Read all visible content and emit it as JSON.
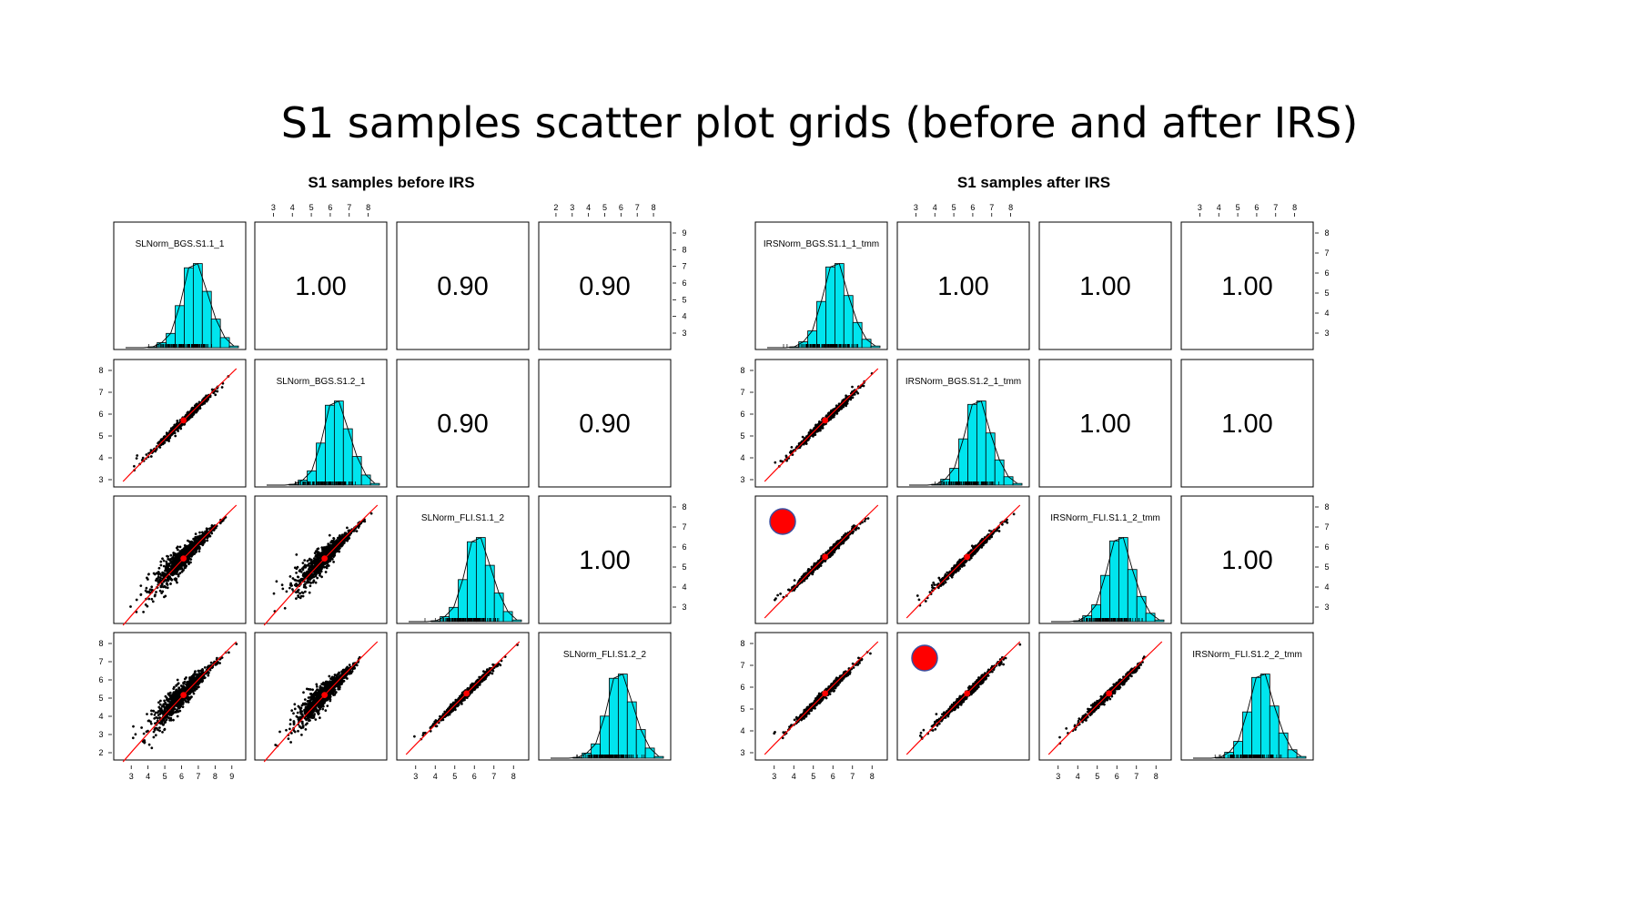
{
  "page": {
    "title": "S1 samples scatter plot grids (before and after IRS)"
  },
  "chart_data": [
    {
      "type": "scatter-matrix",
      "title": "S1 samples before IRS",
      "variables": [
        "SLNorm_BGS.S1.1_1",
        "SLNorm_BGS.S1.2_1",
        "SLNorm_FLI.S1.1_2",
        "SLNorm_FLI.S1.2_2"
      ],
      "correlations": [
        {
          "row": 1,
          "col": 2,
          "value": "1.00"
        },
        {
          "row": 1,
          "col": 3,
          "value": "0.90"
        },
        {
          "row": 1,
          "col": 4,
          "value": "0.90"
        },
        {
          "row": 2,
          "col": 3,
          "value": "0.90"
        },
        {
          "row": 2,
          "col": 4,
          "value": "0.90"
        },
        {
          "row": 3,
          "col": 4,
          "value": "1.00"
        }
      ],
      "scatter_spread": [
        {
          "row": 2,
          "col": 1,
          "spread": "tight"
        },
        {
          "row": 3,
          "col": 1,
          "spread": "wide"
        },
        {
          "row": 3,
          "col": 2,
          "spread": "wide"
        },
        {
          "row": 4,
          "col": 1,
          "spread": "wide"
        },
        {
          "row": 4,
          "col": 2,
          "spread": "wide"
        },
        {
          "row": 4,
          "col": 3,
          "spread": "tight"
        }
      ],
      "histogram": {
        "bar_color": "#00E5EE",
        "bins": [
          2.5,
          3,
          3.5,
          4,
          4.5,
          5,
          5.5,
          6,
          6.5,
          7,
          7.5,
          8,
          8.5,
          9
        ],
        "relative_heights": [
          0,
          0,
          0,
          0.01,
          0.06,
          0.17,
          0.5,
          0.95,
          1.0,
          0.67,
          0.34,
          0.12,
          0.02
        ]
      },
      "top_axis_ticks": [
        {
          "col": 2,
          "ticks": [
            "3",
            "4",
            "5",
            "6",
            "7",
            "8"
          ]
        },
        {
          "col": 4,
          "ticks": [
            "2",
            "3",
            "4",
            "5",
            "6",
            "7",
            "8"
          ]
        }
      ],
      "right_axis_ticks": [
        {
          "row": 1,
          "ticks": [
            "3",
            "4",
            "5",
            "6",
            "7",
            "8",
            "9"
          ]
        },
        {
          "row": 3,
          "ticks": [
            "3",
            "4",
            "5",
            "6",
            "7",
            "8"
          ]
        }
      ],
      "left_axis_ticks": [
        {
          "row": 2,
          "ticks": [
            "3",
            "4",
            "5",
            "6",
            "7",
            "8"
          ]
        },
        {
          "row": 4,
          "ticks": [
            "2",
            "3",
            "4",
            "5",
            "6",
            "7",
            "8"
          ]
        }
      ],
      "bottom_axis_ticks": [
        {
          "col": 1,
          "ticks": [
            "3",
            "4",
            "5",
            "6",
            "7",
            "8",
            "9"
          ]
        },
        {
          "col": 3,
          "ticks": [
            "3",
            "4",
            "5",
            "6",
            "7",
            "8"
          ]
        }
      ],
      "markers": []
    },
    {
      "type": "scatter-matrix",
      "title": "S1 samples after IRS",
      "variables": [
        "IRSNorm_BGS.S1.1_1_tmm",
        "IRSNorm_BGS.S1.2_1_tmm",
        "IRSNorm_FLI.S1.1_2_tmm",
        "IRSNorm_FLI.S1.2_2_tmm"
      ],
      "correlations": [
        {
          "row": 1,
          "col": 2,
          "value": "1.00"
        },
        {
          "row": 1,
          "col": 3,
          "value": "1.00"
        },
        {
          "row": 1,
          "col": 4,
          "value": "1.00"
        },
        {
          "row": 2,
          "col": 3,
          "value": "1.00"
        },
        {
          "row": 2,
          "col": 4,
          "value": "1.00"
        },
        {
          "row": 3,
          "col": 4,
          "value": "1.00"
        }
      ],
      "scatter_spread": [
        {
          "row": 2,
          "col": 1,
          "spread": "tight"
        },
        {
          "row": 3,
          "col": 1,
          "spread": "tight"
        },
        {
          "row": 3,
          "col": 2,
          "spread": "tight"
        },
        {
          "row": 4,
          "col": 1,
          "spread": "tight"
        },
        {
          "row": 4,
          "col": 2,
          "spread": "tight"
        },
        {
          "row": 4,
          "col": 3,
          "spread": "tight"
        }
      ],
      "histogram": {
        "bar_color": "#00E5EE",
        "bins": [
          2.5,
          3,
          3.5,
          4,
          4.5,
          5,
          5.5,
          6,
          6.5,
          7,
          7.5,
          8,
          8.5,
          9
        ],
        "relative_heights": [
          0,
          0,
          0,
          0.01,
          0.07,
          0.2,
          0.55,
          0.96,
          1.0,
          0.62,
          0.3,
          0.1,
          0.02
        ]
      },
      "top_axis_ticks": [
        {
          "col": 2,
          "ticks": [
            "3",
            "4",
            "5",
            "6",
            "7",
            "8"
          ]
        },
        {
          "col": 4,
          "ticks": [
            "3",
            "4",
            "5",
            "6",
            "7",
            "8"
          ]
        }
      ],
      "right_axis_ticks": [
        {
          "row": 1,
          "ticks": [
            "3",
            "4",
            "5",
            "6",
            "7",
            "8"
          ]
        },
        {
          "row": 3,
          "ticks": [
            "3",
            "4",
            "5",
            "6",
            "7",
            "8"
          ]
        }
      ],
      "left_axis_ticks": [
        {
          "row": 2,
          "ticks": [
            "3",
            "4",
            "5",
            "6",
            "7",
            "8"
          ]
        },
        {
          "row": 4,
          "ticks": [
            "3",
            "4",
            "5",
            "6",
            "7",
            "8"
          ]
        }
      ],
      "bottom_axis_ticks": [
        {
          "col": 1,
          "ticks": [
            "3",
            "4",
            "5",
            "6",
            "7",
            "8"
          ]
        },
        {
          "col": 3,
          "ticks": [
            "3",
            "4",
            "5",
            "6",
            "7",
            "8"
          ]
        }
      ],
      "markers": [
        {
          "row": 3,
          "col": 1,
          "shape": "circle",
          "color": "#FF0000",
          "outline": "#3B4FA0"
        },
        {
          "row": 4,
          "col": 2,
          "shape": "circle",
          "color": "#FF0000",
          "outline": "#3B4FA0"
        }
      ]
    }
  ]
}
